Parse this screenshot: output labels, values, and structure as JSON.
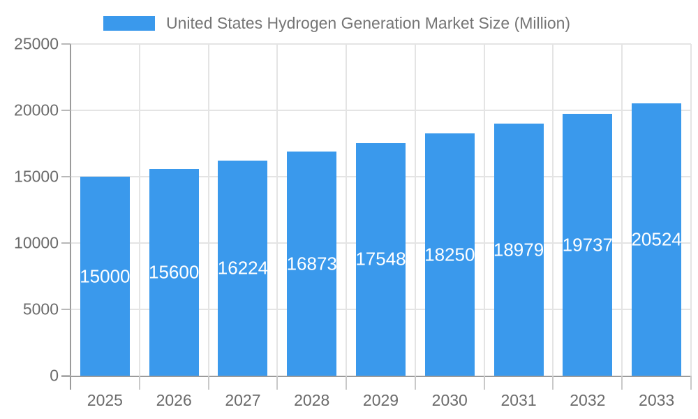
{
  "legend": {
    "label": "United States Hydrogen Generation Market Size (Million)"
  },
  "colors": {
    "bar": "#3a99ec",
    "grid": "#e4e4e4",
    "axis": "#9b9b9b",
    "tick": "#c0c0c0",
    "axis_label": "#6b6b6b",
    "legend_text": "#757575",
    "data_label": "#ffffff"
  },
  "chart_data": {
    "type": "bar",
    "title": "United States Hydrogen Generation Market Size (Million)",
    "categories": [
      "2025",
      "2026",
      "2027",
      "2028",
      "2029",
      "2030",
      "2031",
      "2032",
      "2033"
    ],
    "values": [
      15000,
      15600,
      16224,
      16873,
      17548,
      18250,
      18979,
      19737,
      20524
    ],
    "data_labels": [
      "15000",
      "15600",
      "16224",
      "16873",
      "17548",
      "18250",
      "18979",
      "19737",
      "20524"
    ],
    "xlabel": "",
    "ylabel": "",
    "ylim": [
      0,
      25000
    ],
    "yticks": [
      0,
      5000,
      10000,
      15000,
      20000,
      25000
    ],
    "y_tick_labels": [
      "0",
      "5000",
      "10000",
      "15000",
      "20000",
      "25000"
    ],
    "grid": true,
    "vertical_gridlines": true,
    "legend_position": "top",
    "data_label_position": "middle-inside"
  }
}
